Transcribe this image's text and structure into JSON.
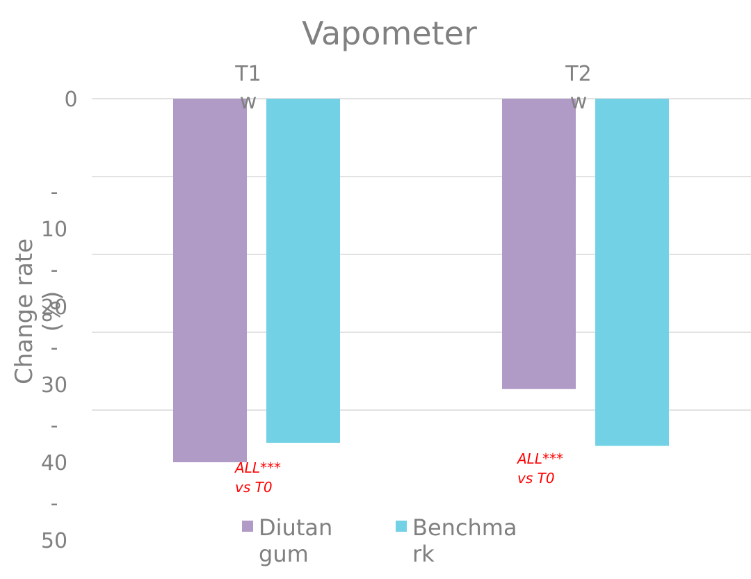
{
  "chart_data": {
    "type": "bar",
    "title": "Vapometer",
    "categories": [
      {
        "lines": [
          "T1",
          "w"
        ]
      },
      {
        "lines": [
          "T2",
          "w"
        ]
      }
    ],
    "ylabel_lines": [
      "Change rate",
      "(%)"
    ],
    "ylim": [
      -50,
      0
    ],
    "y_ticks": [
      {
        "value": 0,
        "lines": [
          "0"
        ]
      },
      {
        "value": -10,
        "lines": [
          "-",
          "10"
        ]
      },
      {
        "value": -20,
        "lines": [
          "-",
          "20"
        ]
      },
      {
        "value": -30,
        "lines": [
          "-",
          "30"
        ]
      },
      {
        "value": -40,
        "lines": [
          "-",
          "40"
        ]
      },
      {
        "value": -50,
        "lines": [
          "-",
          "50"
        ]
      }
    ],
    "grid": true,
    "series": [
      {
        "name_lines": [
          "Diutan",
          "gum"
        ],
        "color": "#b09ac6",
        "values": [
          -46.7,
          -37.3
        ]
      },
      {
        "name_lines": [
          "Benchma",
          "rk"
        ],
        "color": "#72d1e5",
        "values": [
          -44.2,
          -44.6
        ]
      }
    ],
    "annotations": [
      {
        "category_index": 0,
        "lines": [
          "ALL***",
          "vs T0"
        ]
      },
      {
        "category_index": 1,
        "lines": [
          "ALL***",
          "vs T0"
        ]
      }
    ],
    "legend_position": "bottom"
  }
}
